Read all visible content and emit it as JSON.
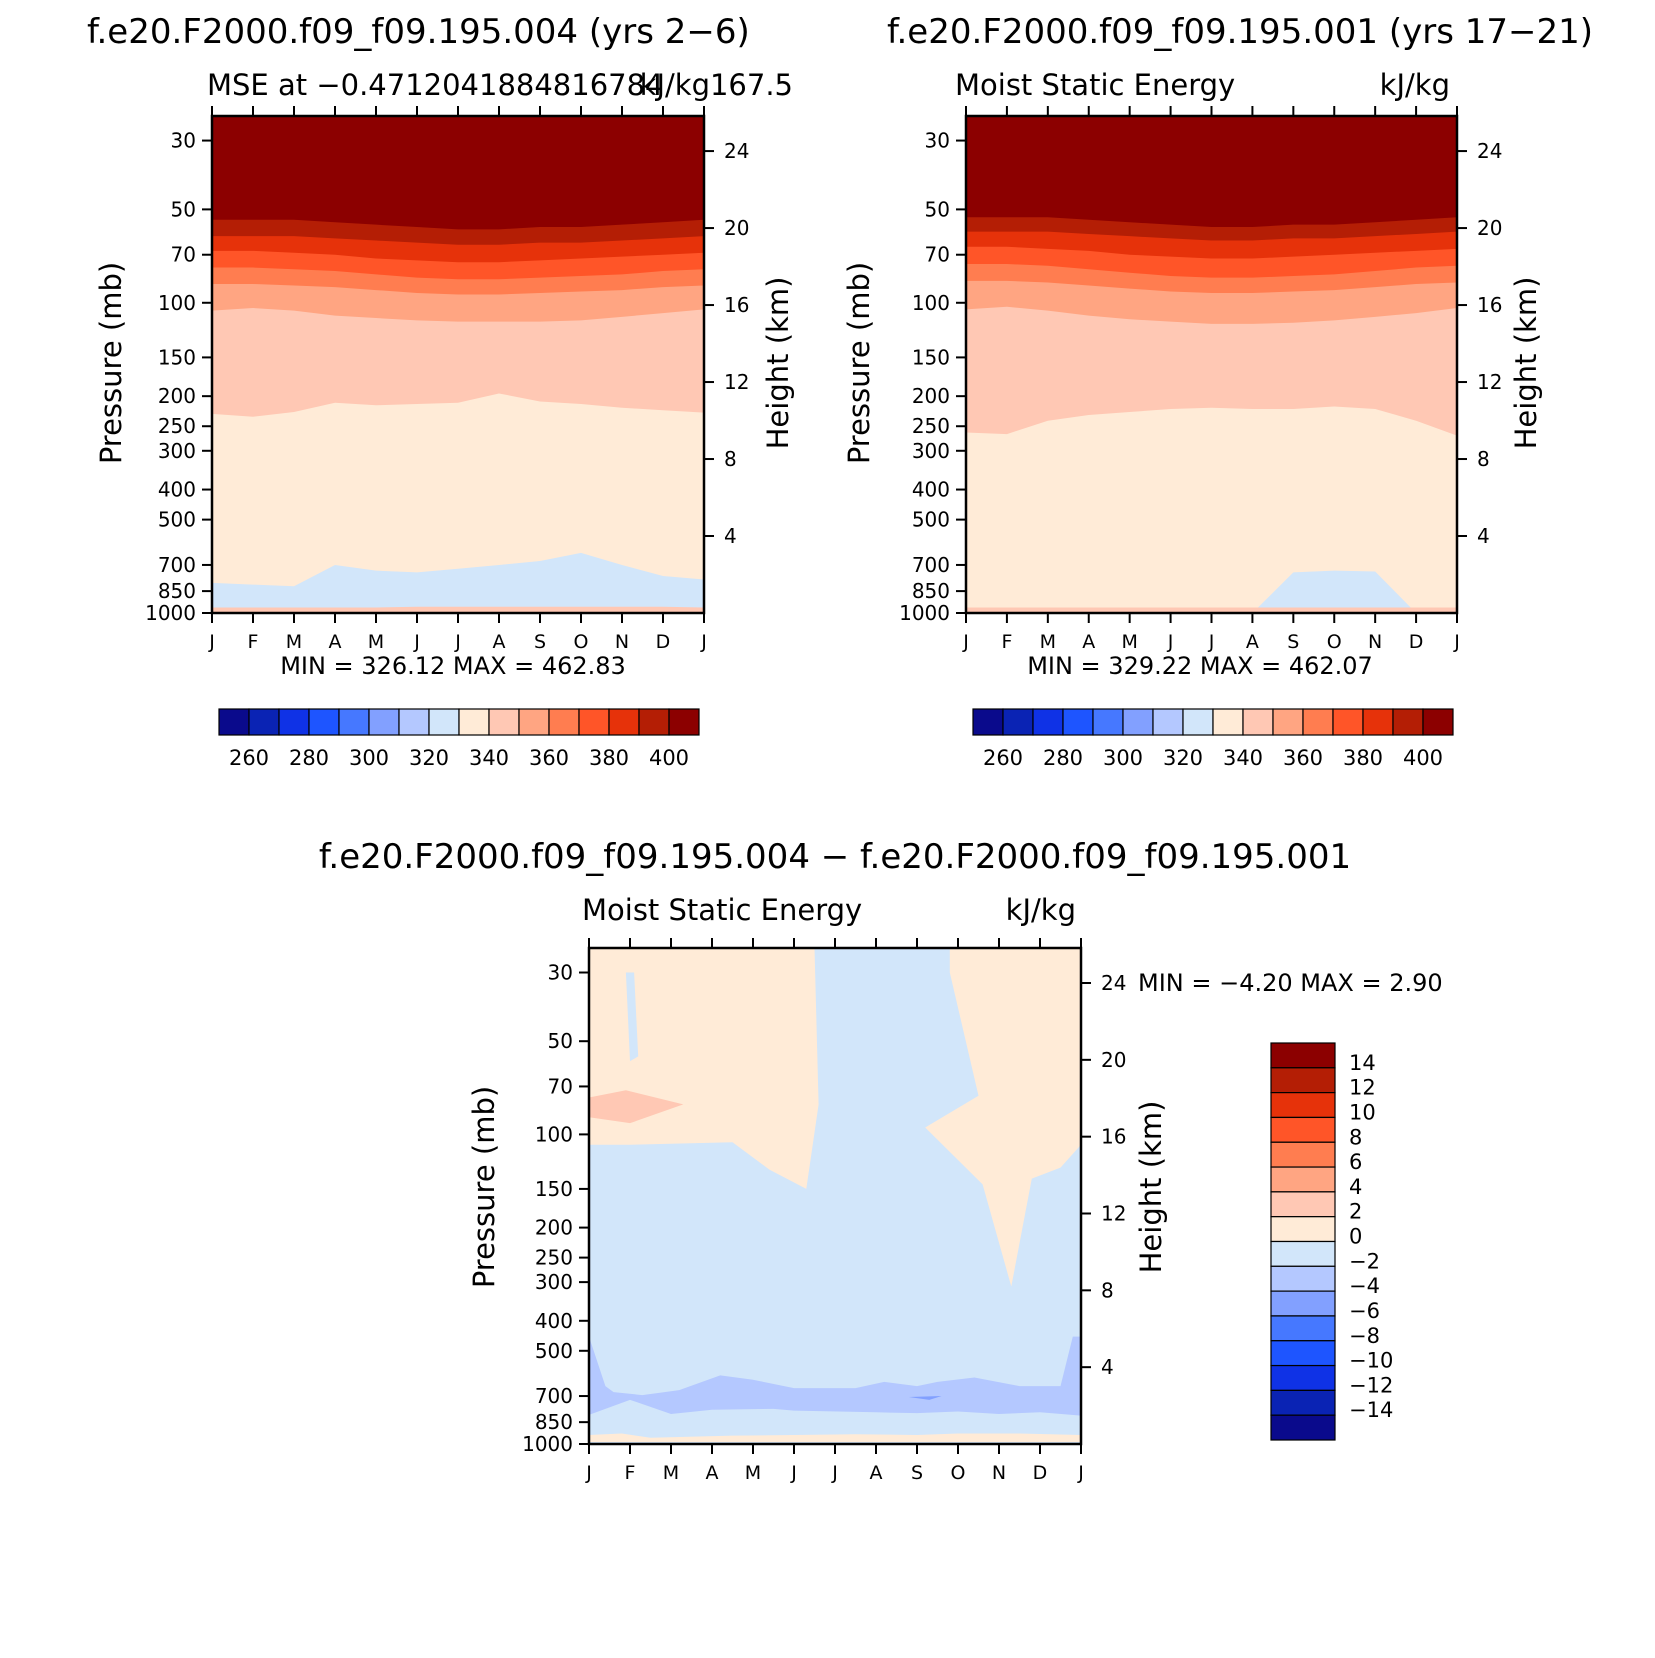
{
  "figure": {
    "panel_a_header": "f.e20.F2000.f09_f09.195.004 (yrs 2−6)",
    "panel_b_header": "f.e20.F2000.f09_f09.195.001 (yrs 17−21)",
    "panel_c_header": "f.e20.F2000.f09_f09.195.004 − f.e20.F2000.f09_f09.195.001"
  },
  "chart_data": [
    {
      "type": "heatmap",
      "title": "MSE at −0.4712041884816784",
      "title_right": "kJ/kg167.5",
      "xlabel": "",
      "ylabel": "Pressure (mb)",
      "y2label": "Height (km)",
      "stats_text": "MIN = 326.12 MAX = 462.83",
      "x_ticks": [
        "J",
        "F",
        "M",
        "A",
        "M",
        "J",
        "J",
        "A",
        "S",
        "O",
        "N",
        "D",
        "J"
      ],
      "x_range": [
        0,
        12
      ],
      "y_ticks": [
        "30",
        "50",
        "70",
        "100",
        "150",
        "200",
        "250",
        "300",
        "400",
        "500",
        "700",
        "850",
        "1000"
      ],
      "y_range_mb": [
        1000,
        25
      ],
      "y_scale": "log",
      "y2_ticks": [
        "4",
        "8",
        "12",
        "16",
        "20",
        "24"
      ],
      "legend_position": "bottom",
      "legend_labels": [
        "260",
        "280",
        "300",
        "320",
        "340",
        "360",
        "380",
        "400"
      ],
      "contour_levels": [
        250,
        260,
        270,
        280,
        290,
        300,
        310,
        320,
        330,
        340,
        350,
        360,
        370,
        380,
        390,
        400
      ],
      "colors": [
        "#0a0a8c",
        "#0a23b4",
        "#0f32e6",
        "#1e55ff",
        "#4678ff",
        "#82a0ff",
        "#b4c8ff",
        "#d2e6fa",
        "#ffebd7",
        "#ffc8b4",
        "#ffa582",
        "#ff7d50",
        "#ff5528",
        "#e6320a",
        "#b41e05",
        "#8c0000"
      ],
      "boundaries": [
        {
          "upper_level": 320,
          "pressure_mb": [
            800,
            810,
            820,
            700,
            730,
            740,
            720,
            700,
            680,
            640,
            700,
            760,
            780
          ]
        },
        {
          "upper_level": 330,
          "pressure_mb": [
            960,
            960,
            960,
            960,
            960,
            955,
            955,
            955,
            955,
            955,
            955,
            955,
            960
          ]
        },
        {
          "upper_level": 340,
          "pressure_mb": [
            228,
            233,
            225,
            210,
            214,
            212,
            210,
            196,
            208,
            212,
            218,
            222,
            226
          ]
        },
        {
          "upper_level": 350,
          "pressure_mb": [
            106,
            104,
            106,
            110,
            112,
            114,
            115,
            115,
            115,
            114,
            111,
            108,
            105
          ]
        },
        {
          "upper_level": 360,
          "pressure_mb": [
            87,
            87,
            88,
            89,
            91,
            93,
            94,
            94,
            93,
            92,
            91,
            89,
            88
          ]
        },
        {
          "upper_level": 370,
          "pressure_mb": [
            77,
            77,
            78,
            79,
            81,
            83,
            84,
            84,
            83,
            82,
            81,
            79,
            78
          ]
        },
        {
          "upper_level": 380,
          "pressure_mb": [
            68,
            68,
            69,
            70,
            72,
            73,
            74,
            74,
            73,
            72,
            71,
            70,
            69
          ]
        },
        {
          "upper_level": 390,
          "pressure_mb": [
            61,
            61,
            61,
            62,
            63,
            64,
            65,
            65,
            64,
            64,
            63,
            62,
            61
          ]
        },
        {
          "upper_level": 400,
          "pressure_mb": [
            54,
            54,
            54,
            55,
            56,
            57,
            58,
            58,
            57,
            57,
            56,
            55,
            54
          ]
        }
      ]
    },
    {
      "type": "heatmap",
      "title": "Moist Static Energy",
      "title_right": "kJ/kg",
      "xlabel": "",
      "ylabel": "Pressure (mb)",
      "y2label": "Height (km)",
      "stats_text": "MIN = 329.22 MAX = 462.07",
      "x_ticks": [
        "J",
        "F",
        "M",
        "A",
        "M",
        "J",
        "J",
        "A",
        "S",
        "O",
        "N",
        "D",
        "J"
      ],
      "x_range": [
        0,
        12
      ],
      "y_ticks": [
        "30",
        "50",
        "70",
        "100",
        "150",
        "200",
        "250",
        "300",
        "400",
        "500",
        "700",
        "850",
        "1000"
      ],
      "y_range_mb": [
        1000,
        25
      ],
      "y_scale": "log",
      "y2_ticks": [
        "4",
        "8",
        "12",
        "16",
        "20",
        "24"
      ],
      "legend_position": "bottom",
      "legend_labels": [
        "260",
        "280",
        "300",
        "320",
        "340",
        "360",
        "380",
        "400"
      ],
      "contour_levels": [
        250,
        260,
        270,
        280,
        290,
        300,
        310,
        320,
        330,
        340,
        350,
        360,
        370,
        380,
        390,
        400
      ],
      "colors": [
        "#0a0a8c",
        "#0a23b4",
        "#0f32e6",
        "#1e55ff",
        "#4678ff",
        "#82a0ff",
        "#b4c8ff",
        "#d2e6fa",
        "#ffebd7",
        "#ffc8b4",
        "#ffa582",
        "#ff7d50",
        "#ff5528",
        "#e6320a",
        "#b41e05",
        "#8c0000"
      ],
      "boundaries": [
        {
          "upper_level": 320,
          "pressure_mb": [
            1000,
            1000,
            1000,
            1000,
            1000,
            1000,
            1000,
            1000,
            740,
            730,
            735,
            1000,
            1000
          ]
        },
        {
          "upper_level": 330,
          "pressure_mb": [
            960,
            960,
            960,
            960,
            960,
            960,
            960,
            960,
            960,
            960,
            960,
            960,
            960
          ]
        },
        {
          "upper_level": 340,
          "pressure_mb": [
            262,
            265,
            240,
            230,
            225,
            220,
            218,
            220,
            220,
            216,
            220,
            240,
            268
          ]
        },
        {
          "upper_level": 350,
          "pressure_mb": [
            105,
            103,
            106,
            110,
            113,
            115,
            117,
            117,
            116,
            114,
            111,
            108,
            104
          ]
        },
        {
          "upper_level": 360,
          "pressure_mb": [
            85,
            85,
            86,
            88,
            90,
            92,
            93,
            93,
            92,
            91,
            89,
            87,
            86
          ]
        },
        {
          "upper_level": 370,
          "pressure_mb": [
            75,
            75,
            76,
            78,
            80,
            82,
            83,
            83,
            82,
            81,
            79,
            77,
            76
          ]
        },
        {
          "upper_level": 380,
          "pressure_mb": [
            66,
            66,
            67,
            68,
            70,
            71,
            72,
            72,
            71,
            70,
            69,
            68,
            67
          ]
        },
        {
          "upper_level": 390,
          "pressure_mb": [
            59,
            59,
            59,
            60,
            61,
            62,
            63,
            63,
            62,
            62,
            61,
            60,
            59
          ]
        },
        {
          "upper_level": 400,
          "pressure_mb": [
            53,
            53,
            53,
            54,
            55,
            56,
            57,
            57,
            56,
            56,
            55,
            54,
            53
          ]
        }
      ]
    },
    {
      "type": "heatmap",
      "title": "Moist Static Energy",
      "title_right": "kJ/kg",
      "xlabel": "",
      "ylabel": "Pressure (mb)",
      "y2label": "Height (km)",
      "stats_text": "MIN = −4.20 MAX = 2.90",
      "x_ticks": [
        "J",
        "F",
        "M",
        "A",
        "M",
        "J",
        "J",
        "A",
        "S",
        "O",
        "N",
        "D",
        "J"
      ],
      "x_range": [
        0,
        12
      ],
      "y_ticks": [
        "30",
        "50",
        "70",
        "100",
        "150",
        "200",
        "250",
        "300",
        "400",
        "500",
        "700",
        "850",
        "1000"
      ],
      "y_range_mb": [
        1000,
        25
      ],
      "y_scale": "log",
      "y2_ticks": [
        "4",
        "8",
        "12",
        "16",
        "20",
        "24"
      ],
      "legend_position": "right",
      "legend_labels": [
        "14",
        "12",
        "10",
        "8",
        "6",
        "4",
        "2",
        "0",
        "−2",
        "−4",
        "−6",
        "−8",
        "−10",
        "−12",
        "−14"
      ],
      "legend_colors_top_to_bottom": [
        "#8c0000",
        "#b41e05",
        "#e6320a",
        "#ff5528",
        "#ff7d50",
        "#ffa582",
        "#ffc8b4",
        "#ffebd7",
        "#d2e6fa",
        "#b4c8ff",
        "#82a0ff",
        "#4678ff",
        "#1e55ff",
        "#0f32e6",
        "#0a23b4",
        "#0a0a8c"
      ],
      "field_colors": {
        "neg2_0": "#d2e6fa",
        "neg4_neg2": "#b4c8ff",
        "neg6_neg4": "#82a0ff",
        "0_2": "#ffebd7",
        "2_4": "#ffc8b4"
      },
      "regions": [
        {
          "level_range": [
            0,
            2
          ],
          "description": "upper tongue",
          "points": [
            [
              0,
              25
            ],
            [
              5.5,
              25
            ],
            [
              5.6,
              80
            ],
            [
              5.3,
              150
            ],
            [
              4.4,
              130
            ],
            [
              3.5,
              106
            ],
            [
              1,
              108
            ],
            [
              0,
              108
            ]
          ]
        },
        {
          "level_range": [
            0,
            2
          ],
          "description": "upper right",
          "points": [
            [
              8.8,
              25
            ],
            [
              12,
              25
            ],
            [
              12,
              108
            ],
            [
              11.5,
              128
            ],
            [
              10.8,
              139
            ],
            [
              10.3,
              310
            ],
            [
              9.6,
              145
            ],
            [
              8.2,
              95
            ],
            [
              9.5,
              75
            ],
            [
              8.8,
              30
            ]
          ]
        },
        {
          "level_range": [
            0,
            2
          ],
          "description": "lower band",
          "points": [
            [
              0,
              935
            ],
            [
              0.8,
              925
            ],
            [
              1.5,
              955
            ],
            [
              3.5,
              940
            ],
            [
              5,
              935
            ],
            [
              6.5,
              930
            ],
            [
              8,
              935
            ],
            [
              9,
              925
            ],
            [
              10.5,
              925
            ],
            [
              12,
              935
            ],
            [
              12,
              985
            ],
            [
              0,
              985
            ]
          ]
        },
        {
          "level_range": [
            -2,
            0
          ],
          "description": "isolated minimum near F",
          "points": [
            [
              0.9,
              30
            ],
            [
              1.1,
              30
            ],
            [
              1.2,
              56
            ],
            [
              1.0,
              58
            ],
            [
              0.9,
              30
            ]
          ]
        },
        {
          "level_range": [
            2,
            4
          ],
          "description": "positive blob near F",
          "points": [
            [
              0,
              76
            ],
            [
              0.9,
              72
            ],
            [
              2.3,
              80
            ],
            [
              1.0,
              92
            ],
            [
              0,
              88
            ]
          ]
        },
        {
          "level_range": [
            -4,
            -2
          ],
          "description": "low-level negative band",
          "points": [
            [
              0,
              450
            ],
            [
              0.4,
              650
            ],
            [
              0.6,
              680
            ],
            [
              1.3,
              695
            ],
            [
              2.2,
              670
            ],
            [
              3.2,
              600
            ],
            [
              4,
              620
            ],
            [
              5,
              660
            ],
            [
              6.5,
              660
            ],
            [
              7.2,
              630
            ],
            [
              8,
              650
            ],
            [
              8.5,
              630
            ],
            [
              9.4,
              610
            ],
            [
              10.5,
              650
            ],
            [
              11.5,
              650
            ],
            [
              11.8,
              450
            ],
            [
              12,
              450
            ],
            [
              12,
              810
            ],
            [
              11,
              790
            ],
            [
              10,
              800
            ],
            [
              9,
              785
            ],
            [
              8,
              795
            ],
            [
              7,
              790
            ],
            [
              5,
              780
            ],
            [
              4.5,
              770
            ],
            [
              3,
              775
            ],
            [
              2,
              800
            ],
            [
              1,
              720
            ],
            [
              0,
              805
            ]
          ]
        },
        {
          "level_range": [
            -6,
            -4
          ],
          "description": "small minimum near S",
          "points": [
            [
              7.8,
              705
            ],
            [
              8.6,
              700
            ],
            [
              8.3,
              720
            ],
            [
              7.8,
              705
            ]
          ]
        }
      ]
    }
  ]
}
